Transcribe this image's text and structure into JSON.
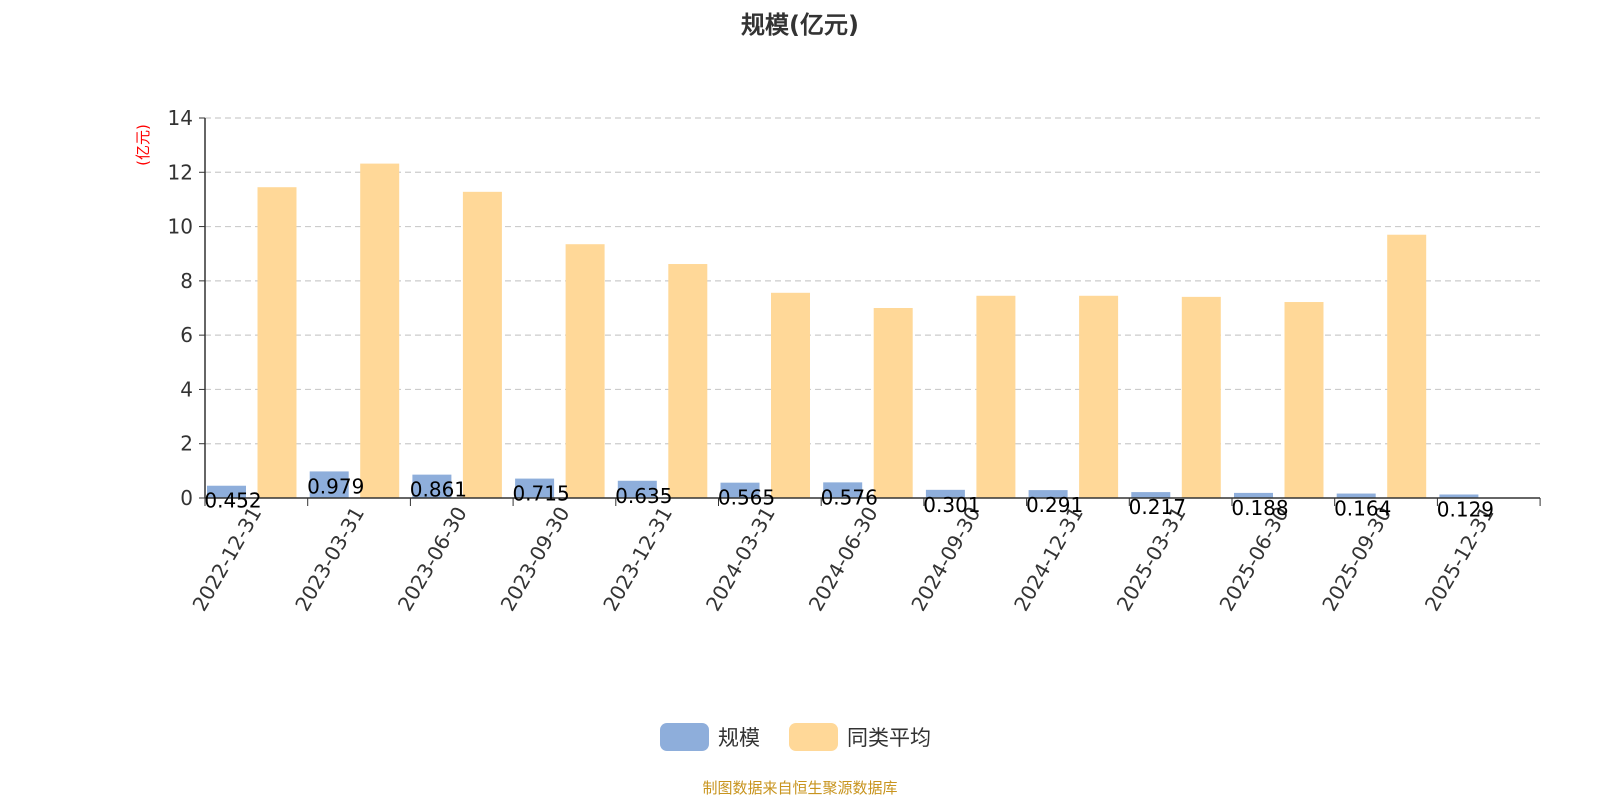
{
  "chart_data": {
    "type": "bar",
    "title": "规模(亿元)",
    "ylabel": "(亿元)",
    "ylim": [
      0,
      14
    ],
    "yticks": [
      0,
      2,
      4,
      6,
      8,
      10,
      12,
      14
    ],
    "grid": true,
    "legend_position": "bottom",
    "categories": [
      "2022-12-31",
      "2023-03-31",
      "2023-06-30",
      "2023-09-30",
      "2023-12-31",
      "2024-03-31",
      "2024-06-30",
      "2024-09-30",
      "2024-12-31",
      "2025-03-31",
      "2025-06-30",
      "2025-09-30",
      "2025-12-31"
    ],
    "series": [
      {
        "name": "规模",
        "color": "#8eaedb",
        "values": [
          0.452,
          0.979,
          0.861,
          0.715,
          0.635,
          0.565,
          0.576,
          0.301,
          0.291,
          0.217,
          0.188,
          0.164,
          0.129
        ],
        "labels": [
          "0.452",
          "0.979",
          "0.861",
          "0.715",
          "0.635",
          "0.565",
          "0.576",
          "0.301",
          "0.291",
          "0.217",
          "0.188",
          "0.164",
          "0.129"
        ]
      },
      {
        "name": "同类平均",
        "color": "#ffd898",
        "values": [
          11.45,
          12.32,
          11.28,
          9.35,
          8.62,
          7.56,
          7.0,
          7.45,
          7.45,
          7.41,
          7.22,
          9.7,
          null
        ]
      }
    ]
  },
  "source_text": "制图数据来自恒生聚源数据库"
}
